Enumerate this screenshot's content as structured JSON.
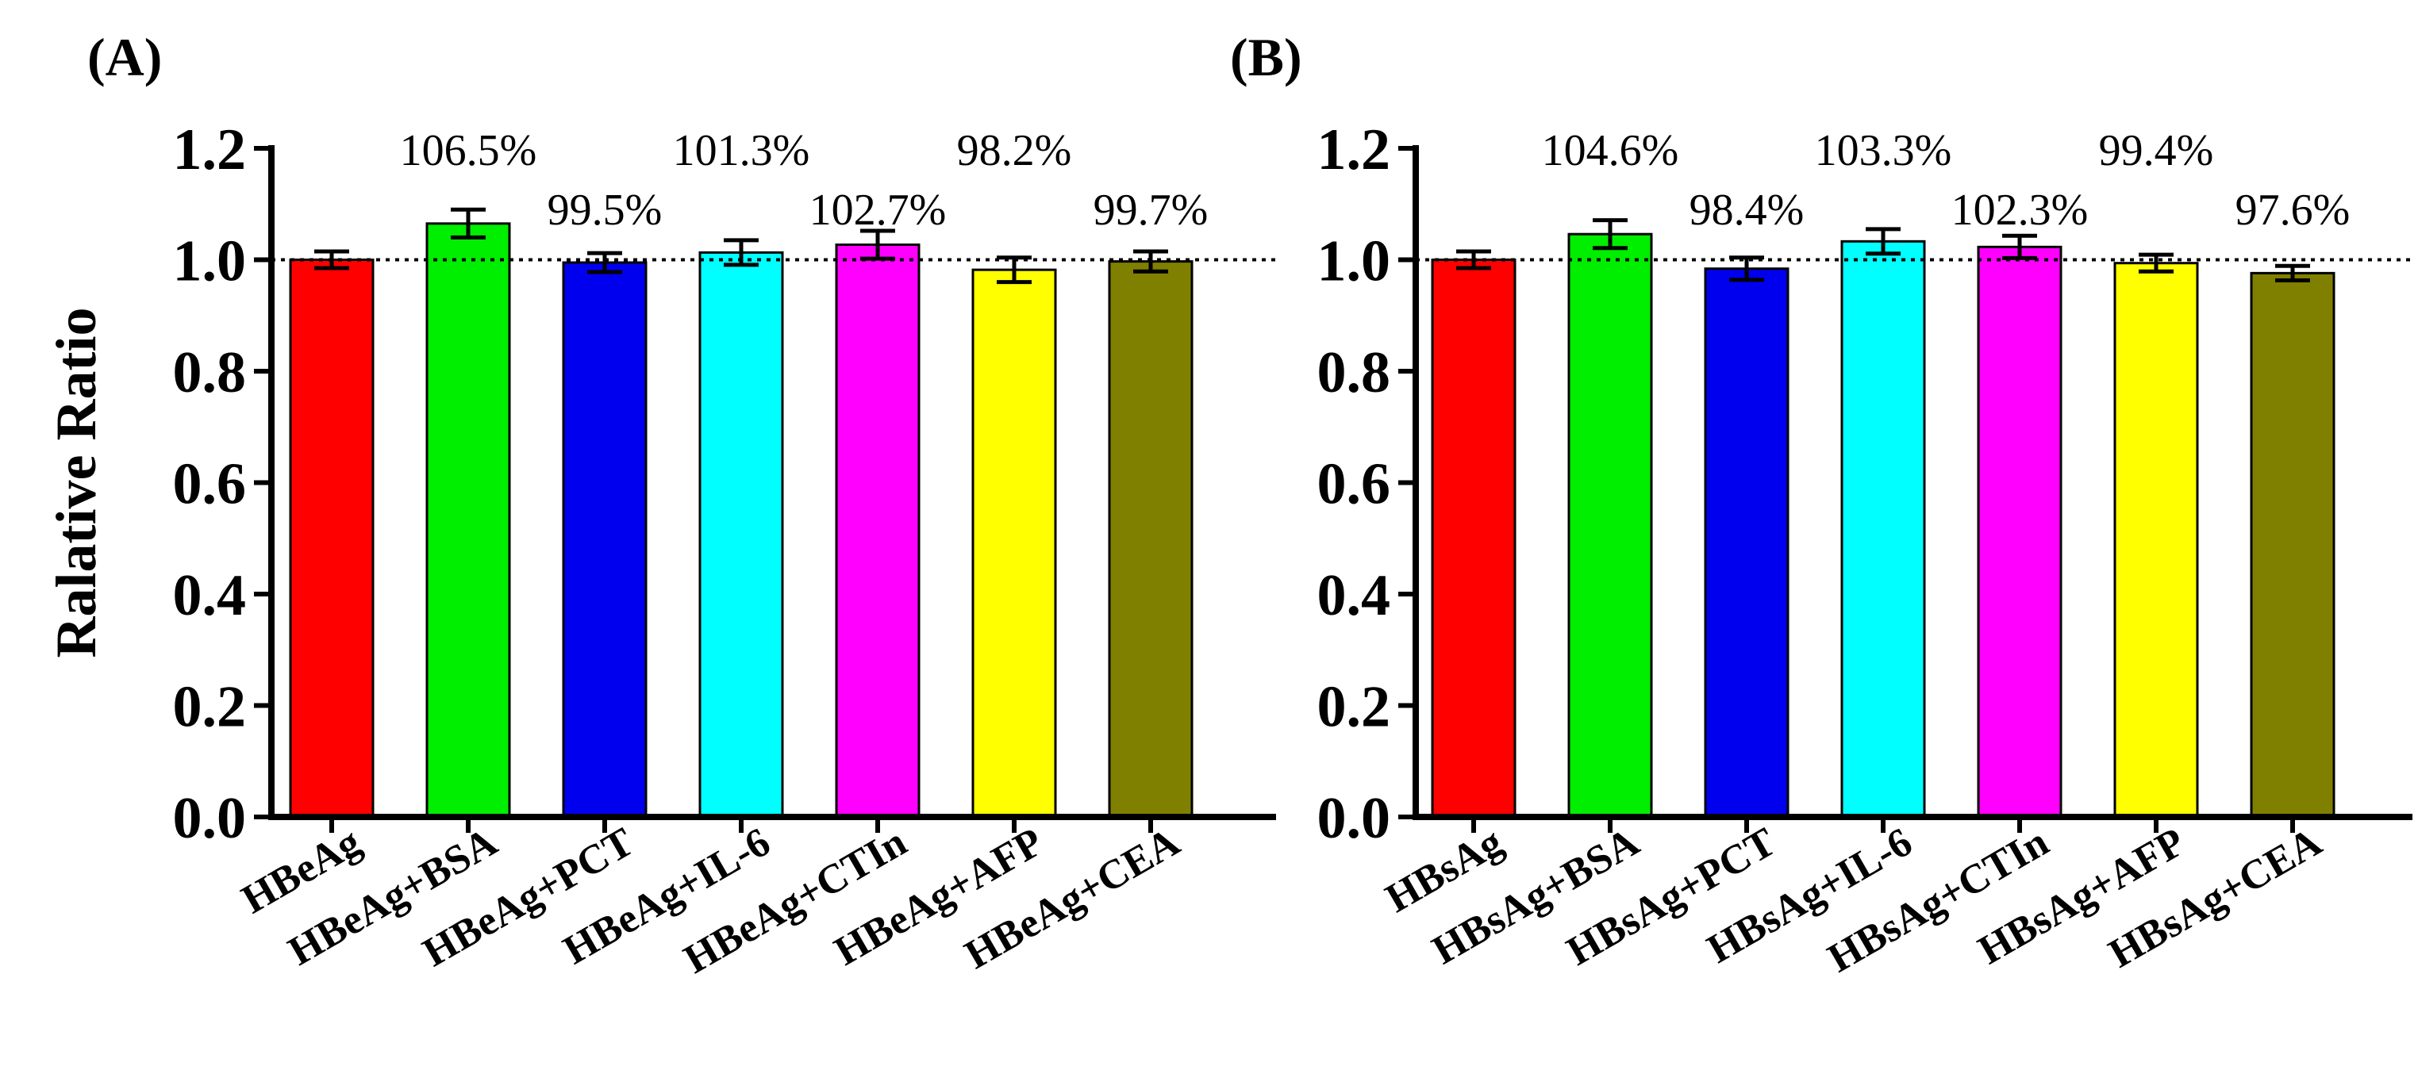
{
  "chart_data": [
    {
      "type": "bar",
      "panel_label": "(A)",
      "title": "",
      "xlabel": "",
      "ylabel": "Ralative Ratio",
      "ylim": [
        0,
        1.2
      ],
      "yticks": [
        "0.0",
        "0.2",
        "0.4",
        "0.6",
        "0.8",
        "1.0",
        "1.2"
      ],
      "reference_line": 1.0,
      "categories": [
        "HBeAg",
        "HBeAg+BSA",
        "HBeAg+PCT",
        "HBeAg+IL-6",
        "HBeAg+CTIn",
        "HBeAg+AFP",
        "HBeAg+CEA"
      ],
      "values": [
        1.0,
        1.065,
        0.995,
        1.013,
        1.027,
        0.982,
        0.997
      ],
      "errors": [
        0.015,
        0.025,
        0.017,
        0.022,
        0.025,
        0.022,
        0.018
      ],
      "labels": [
        "",
        "106.5%",
        "99.5%",
        "101.3%",
        "102.7%",
        "98.2%",
        "99.7%"
      ],
      "label_tier": [
        "",
        "high",
        "low",
        "high",
        "low",
        "high",
        "low"
      ],
      "colors": [
        "#ff0000",
        "#00ee00",
        "#0000ee",
        "#00ffff",
        "#ff00ff",
        "#ffff00",
        "#808000"
      ]
    },
    {
      "type": "bar",
      "panel_label": "(B)",
      "title": "",
      "xlabel": "",
      "ylabel": "",
      "ylim": [
        0,
        1.2
      ],
      "yticks": [
        "0.0",
        "0.2",
        "0.4",
        "0.6",
        "0.8",
        "1.0",
        "1.2"
      ],
      "reference_line": 1.0,
      "categories": [
        "HBsAg",
        "HBsAg+BSA",
        "HBsAg+PCT",
        "HBsAg+IL-6",
        "HBsAg+CTIn",
        "HBsAg+AFP",
        "HBsAg+CEA"
      ],
      "values": [
        1.0,
        1.046,
        0.984,
        1.033,
        1.023,
        0.994,
        0.976
      ],
      "errors": [
        0.015,
        0.025,
        0.02,
        0.022,
        0.02,
        0.015,
        0.013
      ],
      "labels": [
        "",
        "104.6%",
        "98.4%",
        "103.3%",
        "102.3%",
        "99.4%",
        "97.6%"
      ],
      "label_tier": [
        "",
        "high",
        "low",
        "high",
        "low",
        "high",
        "low"
      ],
      "colors": [
        "#ff0000",
        "#00ee00",
        "#0000ee",
        "#00ffff",
        "#ff00ff",
        "#ffff00",
        "#808000"
      ]
    }
  ]
}
